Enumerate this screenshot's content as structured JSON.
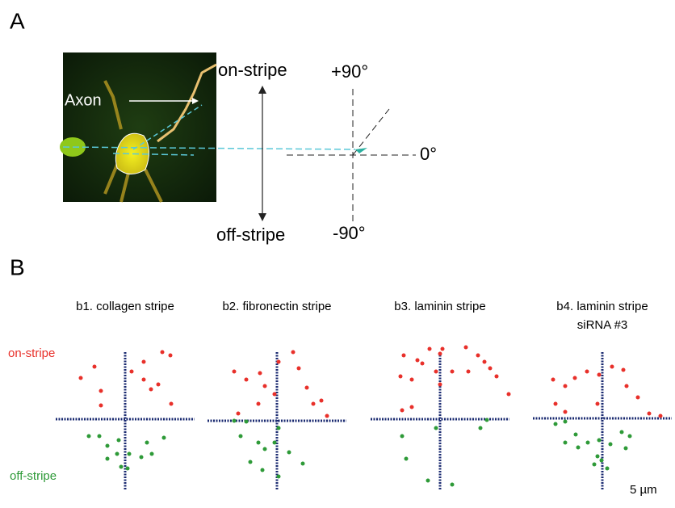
{
  "panel_a": {
    "label": "A",
    "axon": "Axon",
    "on_stripe": "on-stripe",
    "off_stripe": "off-stripe",
    "plus90": "+90°",
    "zero": "0°",
    "minus90": "-90°"
  },
  "panel_b": {
    "label": "B",
    "on_stripe": "on-stripe",
    "off_stripe": "off-stripe",
    "scale": "5 µm",
    "plots": [
      {
        "title": "b1. collagen stripe",
        "on": {
          "x": [
            -55,
            -38,
            -30,
            -30,
            8,
            23,
            32,
            46,
            56,
            41,
            57,
            23
          ],
          "y": [
            51,
            65,
            35,
            17,
            59,
            49,
            37,
            83,
            79,
            43,
            19,
            71
          ]
        },
        "off": {
          "x": [
            -45,
            -32,
            -22,
            -8,
            -10,
            5,
            20,
            27,
            33,
            48,
            -5,
            3,
            -22
          ],
          "y": [
            -21,
            -21,
            -33,
            -26,
            -43,
            -43,
            -47,
            -29,
            -43,
            -23,
            -59,
            -61,
            -49
          ]
        }
      },
      {
        "title": "b2. fibronectin stripe",
        "on": {
          "x": [
            -53,
            -38,
            -21,
            -15,
            2,
            20,
            27,
            37,
            45,
            55,
            62,
            -48,
            -23,
            -3
          ],
          "y": [
            61,
            51,
            59,
            43,
            73,
            85,
            65,
            41,
            21,
            25,
            6,
            9,
            21,
            33
          ]
        },
        "off": {
          "x": [
            -45,
            -38,
            -23,
            -3,
            2,
            -33,
            -18,
            15,
            32,
            2,
            -15,
            -53
          ],
          "y": [
            -19,
            -1,
            -27,
            -27,
            -9,
            -51,
            -61,
            -39,
            -53,
            -69,
            -35,
            0
          ]
        }
      },
      {
        "title": "b3. laminin stripe",
        "on": {
          "x": [
            -45,
            -28,
            -13,
            3,
            32,
            47,
            55,
            62,
            70,
            85,
            15,
            -5,
            -22,
            -49,
            -35,
            0,
            35,
            0,
            -47,
            -35
          ],
          "y": [
            79,
            73,
            87,
            87,
            89,
            79,
            71,
            63,
            53,
            31,
            59,
            59,
            69,
            53,
            49,
            43,
            59,
            81,
            11,
            15
          ]
        },
        "off": {
          "x": [
            -47,
            -42,
            -15,
            15,
            50,
            58,
            -5
          ],
          "y": [
            -21,
            -49,
            -76,
            -81,
            -11,
            -1,
            -11
          ]
        }
      },
      {
        "title": "b4. laminin stripe",
        "subtitle": "siRNA #3",
        "on": {
          "x": [
            -61,
            -46,
            -34,
            -19,
            -4,
            12,
            26,
            30,
            44,
            58,
            72,
            -58,
            -46,
            -6
          ],
          "y": [
            48,
            40,
            50,
            58,
            54,
            64,
            60,
            40,
            26,
            6,
            3,
            18,
            8,
            18
          ]
        },
        "off": {
          "x": [
            -58,
            -46,
            -33,
            -18,
            -4,
            10,
            24,
            34,
            29,
            -46,
            -30,
            -6,
            -1,
            -10,
            6
          ],
          "y": [
            -7,
            -4,
            -20,
            -30,
            -27,
            -32,
            -17,
            -22,
            -37,
            -30,
            -36,
            -47,
            -52,
            -57,
            -62
          ]
        }
      }
    ]
  }
}
